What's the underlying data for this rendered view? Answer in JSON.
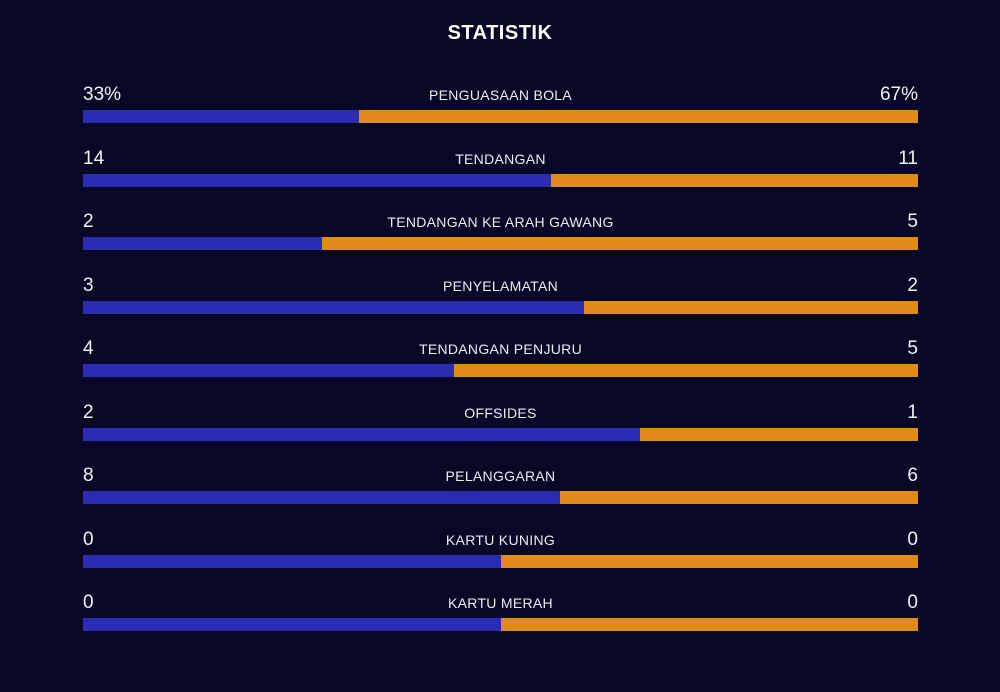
{
  "title": "STATISTIK",
  "colors": {
    "background": "#080826",
    "home_bar": "#2a2cb4",
    "away_bar": "#e08a1c"
  },
  "stats": [
    {
      "label": "PENGUASAAN BOLA",
      "home": "33%",
      "away": "67%",
      "home_share": 0.33
    },
    {
      "label": "TENDANGAN",
      "home": "14",
      "away": "11",
      "home_share": 0.56
    },
    {
      "label": "TENDANGAN KE ARAH GAWANG",
      "home": "2",
      "away": "5",
      "home_share": 0.2857
    },
    {
      "label": "PENYELAMATAN",
      "home": "3",
      "away": "2",
      "home_share": 0.6
    },
    {
      "label": "TENDANGAN PENJURU",
      "home": "4",
      "away": "5",
      "home_share": 0.4444
    },
    {
      "label": "OFFSIDES",
      "home": "2",
      "away": "1",
      "home_share": 0.6667
    },
    {
      "label": "PELANGGARAN",
      "home": "8",
      "away": "6",
      "home_share": 0.5714
    },
    {
      "label": "KARTU KUNING",
      "home": "0",
      "away": "0",
      "home_share": 0.5
    },
    {
      "label": "KARTU MERAH",
      "home": "0",
      "away": "0",
      "home_share": 0.5
    }
  ]
}
